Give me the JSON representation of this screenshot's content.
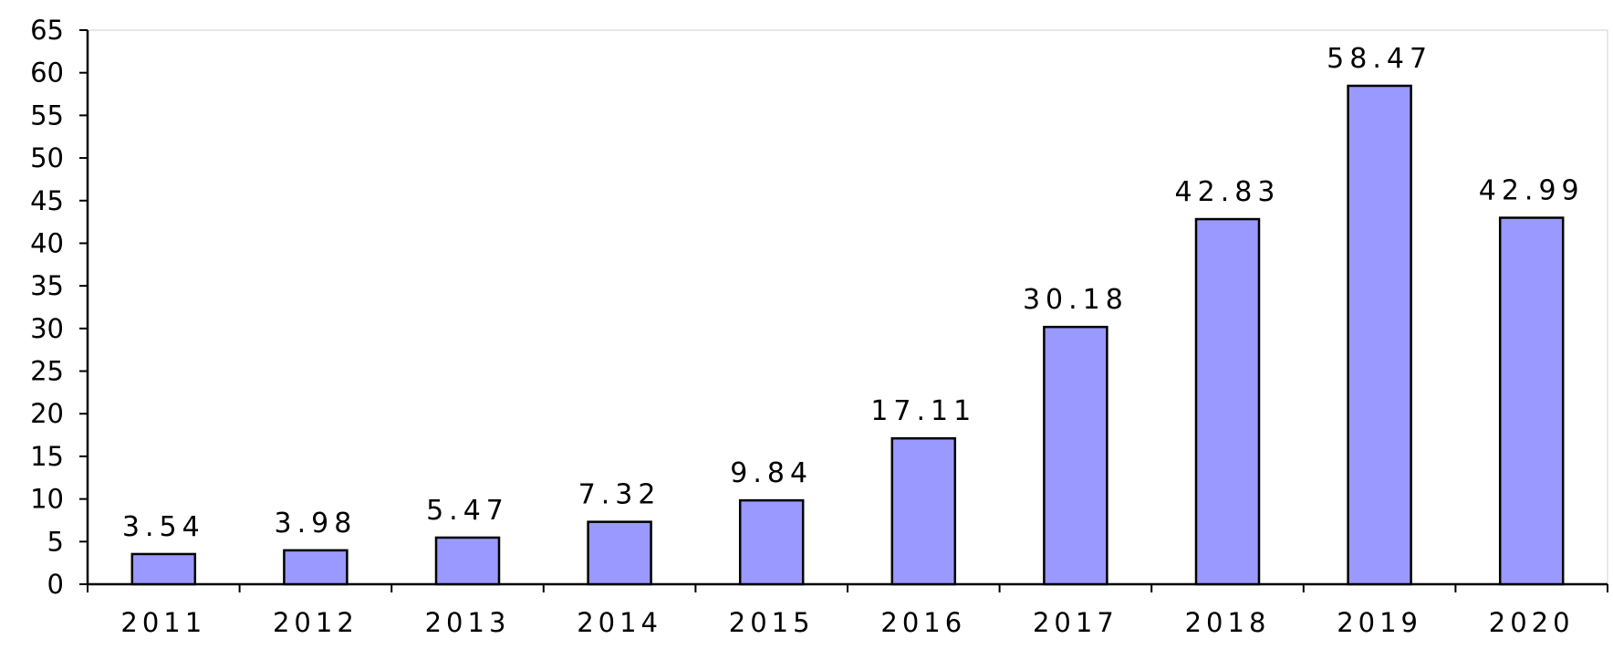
{
  "chart_data": {
    "type": "bar",
    "title": "",
    "xlabel": "",
    "ylabel": "",
    "categories": [
      "2011",
      "2012",
      "2013",
      "2014",
      "2015",
      "2016",
      "2017",
      "2018",
      "2019",
      "2020"
    ],
    "values": [
      3.54,
      3.98,
      5.47,
      7.32,
      9.84,
      17.11,
      30.18,
      42.83,
      58.47,
      42.99
    ],
    "data_labels": [
      "3.54",
      "3.98",
      "5.47",
      "7.32",
      "9.84",
      "17.11",
      "30.18",
      "42.83",
      "58.47",
      "42.99"
    ],
    "ylim": [
      0,
      65
    ],
    "yticks": [
      0,
      5,
      10,
      15,
      20,
      25,
      30,
      35,
      40,
      45,
      50,
      55,
      60,
      65
    ],
    "grid": false,
    "legend": "none",
    "colors": {
      "bar_fill": "#9999ff",
      "bar_stroke": "#000000"
    }
  }
}
